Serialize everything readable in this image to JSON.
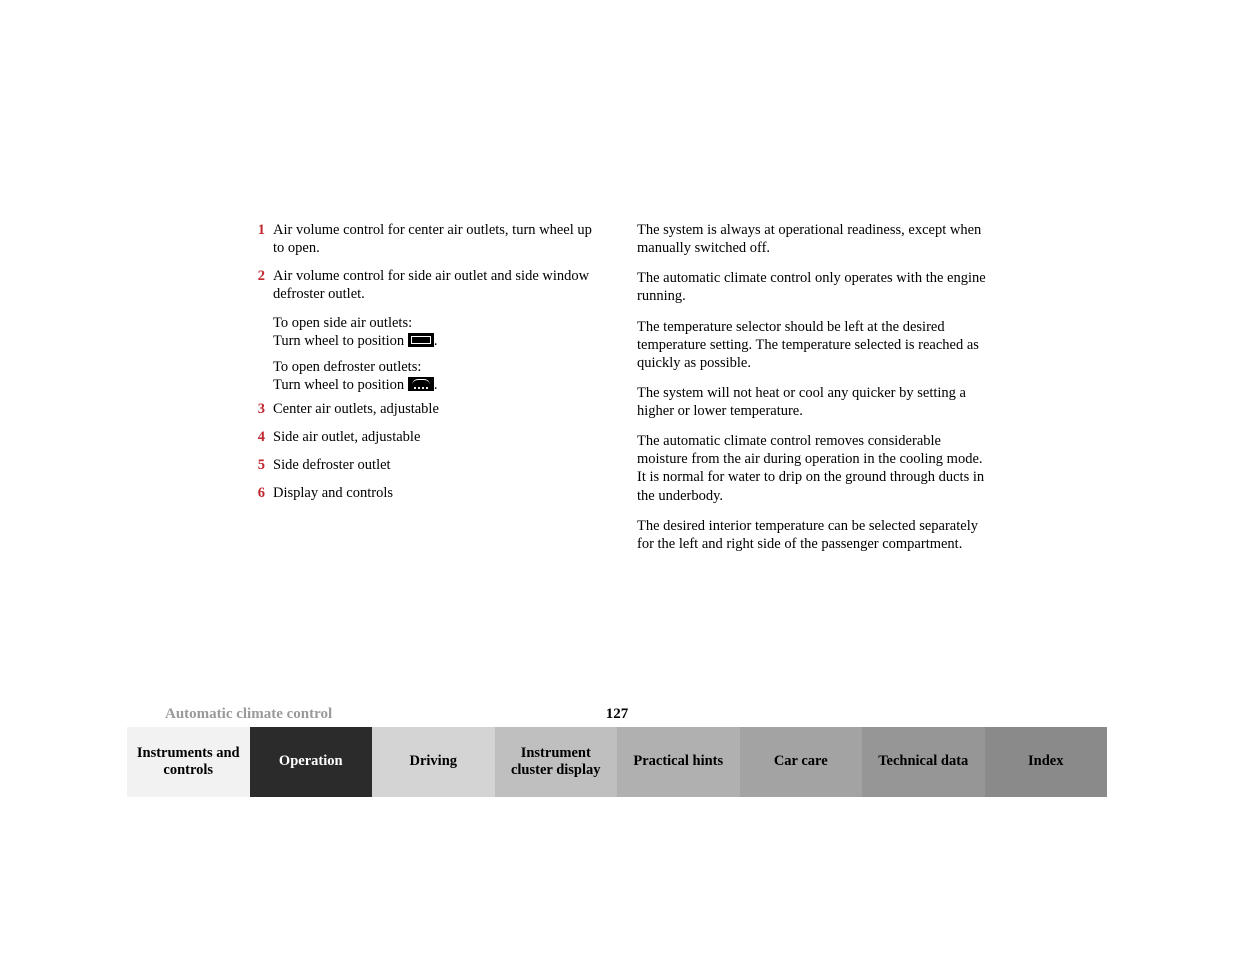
{
  "left_column": {
    "items": [
      {
        "num": "1",
        "text": "Air volume control for center air outlets, turn wheel up to open."
      },
      {
        "num": "2",
        "text": "Air volume control for side air outlet and side window defroster outlet.",
        "subs": [
          {
            "line1": "To open side air outlets:",
            "line2_pre": "Turn wheel to position ",
            "icon": "open",
            "line2_post": "."
          },
          {
            "line1": "To open defroster outlets:",
            "line2_pre": "Turn wheel to position ",
            "icon": "defrost",
            "line2_post": "."
          }
        ]
      },
      {
        "num": "3",
        "text": "Center air outlets, adjustable"
      },
      {
        "num": "4",
        "text": "Side air outlet, adjustable"
      },
      {
        "num": "5",
        "text": "Side defroster outlet"
      },
      {
        "num": "6",
        "text": "Display and controls"
      }
    ]
  },
  "right_column": {
    "paras": [
      "The system is always at operational readiness, except when manually switched off.",
      "The automatic climate control only operates with the engine running.",
      "The temperature selector should be left at the desired temperature setting. The temperature selected is reached as quickly as possible.",
      "The system will not heat or cool any quicker by setting a higher or lower temperature.",
      "The automatic climate control removes considerable moisture from the air during operation in the cooling mode. It is normal for water to drip on the ground through ducts in the underbody.",
      "The desired interior temperature can be selected separately for the left and right side of the passenger compartment."
    ]
  },
  "footer": {
    "section": "Automatic climate control",
    "page": "127"
  },
  "tabs": [
    {
      "label": "Instruments and controls",
      "bg": "#f2f2f2",
      "fg": "#000000"
    },
    {
      "label": "Operation",
      "bg": "#2b2b2b",
      "fg": "#ffffff"
    },
    {
      "label": "Driving",
      "bg": "#d4d4d4",
      "fg": "#000000"
    },
    {
      "label": "Instrument cluster display",
      "bg": "#bfbfbf",
      "fg": "#000000"
    },
    {
      "label": "Practical hints",
      "bg": "#b0b0b0",
      "fg": "#000000"
    },
    {
      "label": "Car care",
      "bg": "#a3a3a3",
      "fg": "#000000"
    },
    {
      "label": "Technical data",
      "bg": "#969696",
      "fg": "#000000"
    },
    {
      "label": "Index",
      "bg": "#8a8a8a",
      "fg": "#000000"
    }
  ],
  "colors": {
    "accent_red": "#c1272d",
    "muted_gray": "#9a9a9a"
  }
}
